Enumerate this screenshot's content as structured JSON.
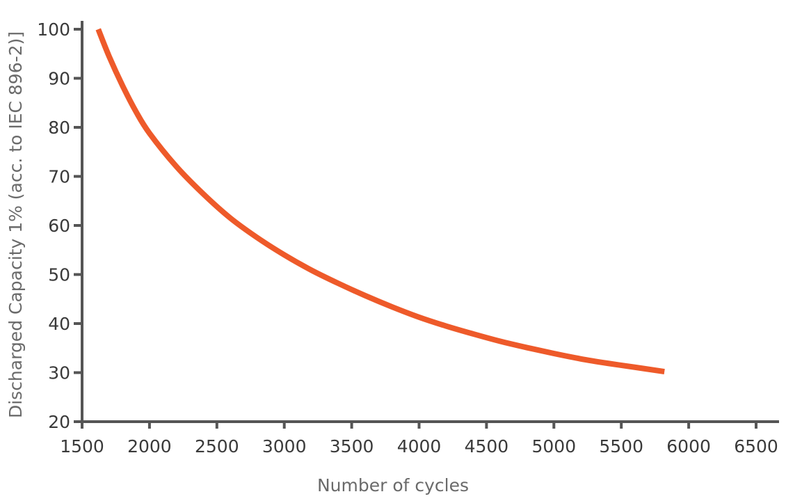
{
  "chart_data": {
    "type": "line",
    "title": "",
    "xlabel": "Number of cycles",
    "ylabel": "Discharged Capacity 1% (acc. to IEC 896-2)]",
    "xlim": [
      1500,
      6700
    ],
    "ylim": [
      20,
      100
    ],
    "x_ticks": [
      1500,
      2000,
      2500,
      3000,
      3500,
      4000,
      4500,
      5000,
      5500,
      6000,
      6500
    ],
    "y_ticks": [
      20,
      30,
      40,
      50,
      60,
      70,
      80,
      90,
      100
    ],
    "grid": false,
    "legend": "none",
    "series": [
      {
        "color": "#ee5a2a",
        "x": [
          1620,
          1700,
          1800,
          1900,
          2000,
          2200,
          2400,
          2600,
          2800,
          3000,
          3200,
          3400,
          3600,
          3800,
          4000,
          4200,
          4400,
          4600,
          4800,
          5000,
          5200,
          5400,
          5600,
          5820
        ],
        "y": [
          100,
          94.5,
          88.5,
          83.2,
          78.8,
          72.0,
          66.4,
          61.5,
          57.5,
          54.0,
          50.9,
          48.2,
          45.7,
          43.4,
          41.3,
          39.5,
          37.9,
          36.4,
          35.1,
          33.9,
          32.8,
          31.9,
          31.1,
          30.2
        ]
      }
    ]
  }
}
